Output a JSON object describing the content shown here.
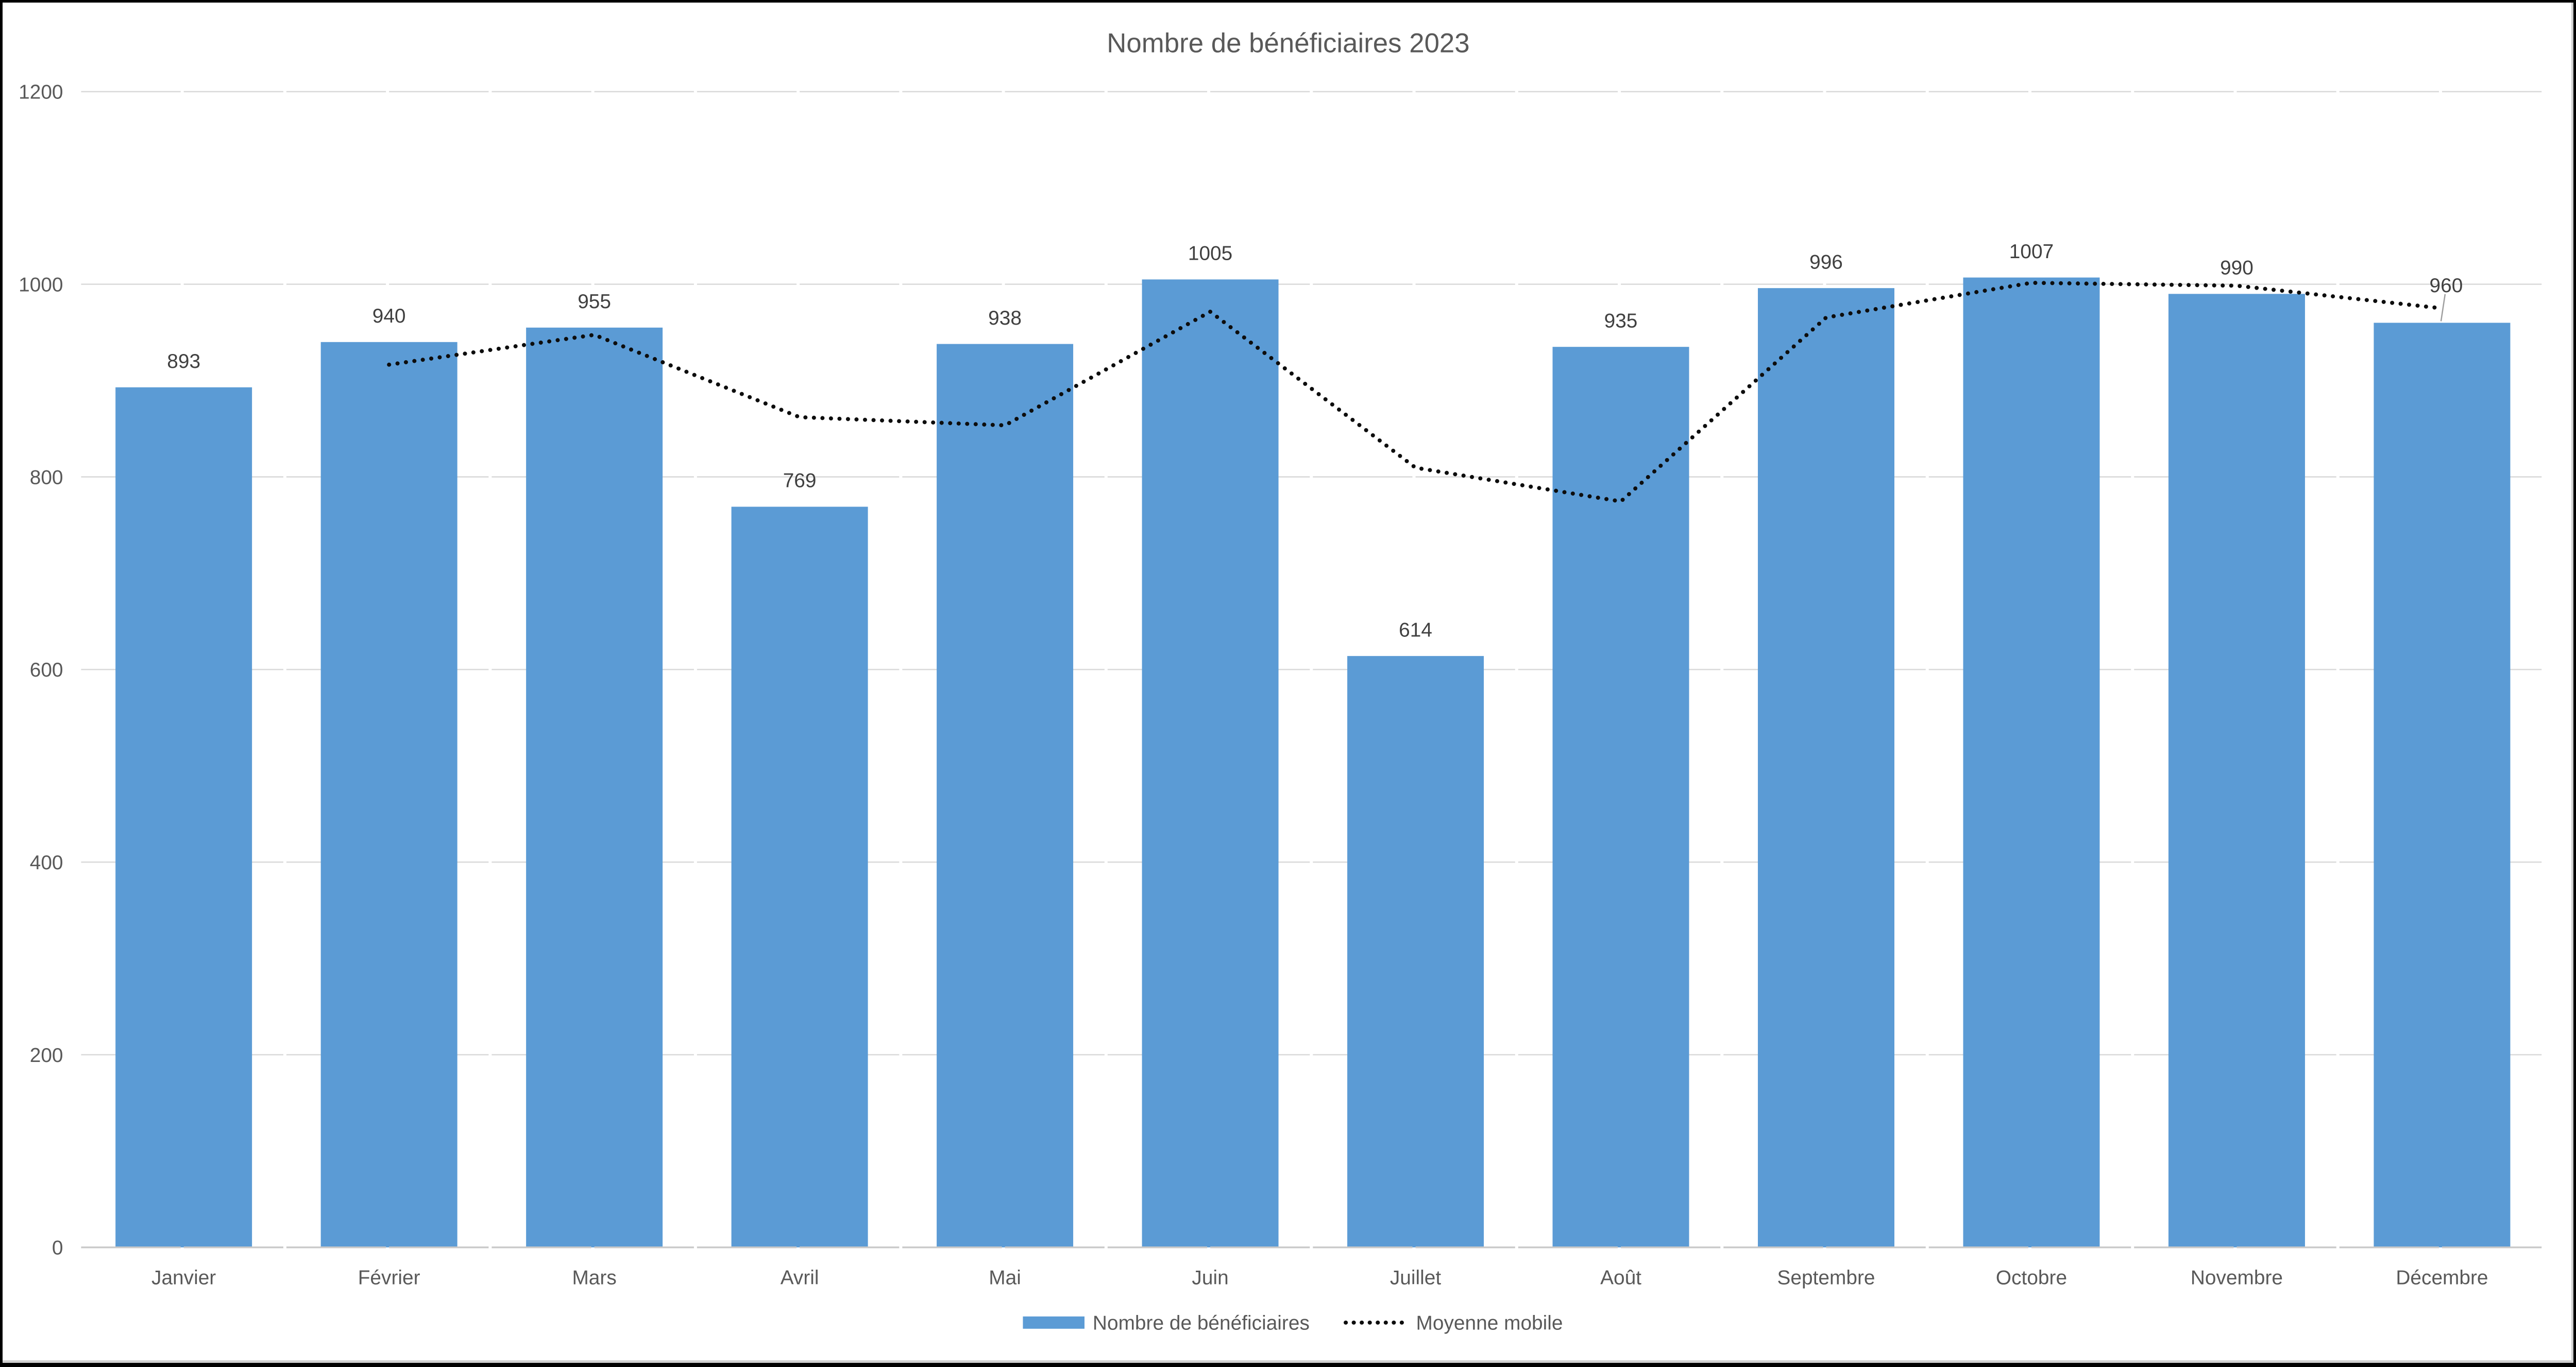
{
  "chart_data": {
    "type": "bar",
    "title": "Nombre de bénéficiaires 2023",
    "categories": [
      "Janvier",
      "Février",
      "Mars",
      "Avril",
      "Mai",
      "Juin",
      "Juillet",
      "Août",
      "Septembre",
      "Octobre",
      "Novembre",
      "Décembre"
    ],
    "series": [
      {
        "name": "Nombre de bénéficiaires",
        "type": "bar",
        "color": "#5B9BD5",
        "values": [
          893,
          940,
          955,
          769,
          938,
          1005,
          614,
          935,
          996,
          1007,
          990,
          960
        ],
        "data_labels_shown": true
      },
      {
        "name": "Moyenne mobile",
        "type": "line",
        "line_style": "dotted",
        "color": "#0D0D0D",
        "values": [
          null,
          916.5,
          947.5,
          862,
          853.5,
          971.5,
          809.5,
          774.5,
          965.5,
          1001.5,
          998.5,
          975
        ]
      }
    ],
    "ylim": [
      0,
      1200
    ],
    "yticks": [
      "0",
      "200",
      "400",
      "600",
      "800",
      "1000",
      "1200"
    ],
    "grid": true,
    "legend_position": "bottom",
    "colors": {
      "bar": "#5B9BD5",
      "line_dots": "#0D0D0D",
      "gridline": "#D9D9D9",
      "axis_line": "#C9C9C9",
      "title_text": "#595959",
      "tick_text": "#595959",
      "data_label_text": "#404040",
      "background": "#FFFFFF",
      "frame": "#000000"
    }
  },
  "legend": {
    "items": [
      {
        "label": "Nombre de bénéficiaires",
        "marker": "blue-rect-swatch"
      },
      {
        "label": "Moyenne mobile",
        "marker": "black-dotted-line-swatch"
      }
    ]
  }
}
